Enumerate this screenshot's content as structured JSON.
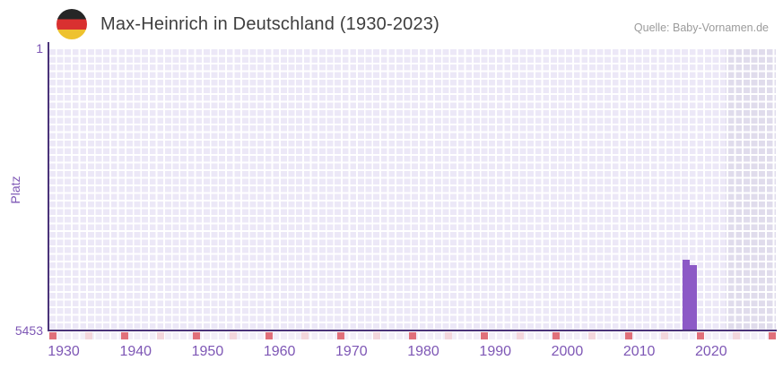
{
  "header": {
    "flag": "germany-flag",
    "title": "Max-Heinrich in Deutschland (1930-2023)",
    "source": "Quelle: Baby-Vornamen.de"
  },
  "chart_data": {
    "type": "bar",
    "title": "Max-Heinrich in Deutschland (1930-2023)",
    "xlabel": "",
    "ylabel": "Platz",
    "y_axis_inverted": true,
    "y_range": [
      1,
      5453
    ],
    "y_ticks": [
      "1",
      "5453"
    ],
    "x_range": [
      1928,
      2029
    ],
    "x_ticks": [
      1930,
      1940,
      1950,
      1960,
      1970,
      1980,
      1990,
      2000,
      2010,
      2020
    ],
    "bars": [
      {
        "year": 2016,
        "rank": 4100
      },
      {
        "year": 2017,
        "rank": 4200
      }
    ],
    "shaded_band_x": [
      2022,
      2029
    ],
    "decade_markers_dark": [
      1928,
      1938,
      1948,
      1958,
      1968,
      1978,
      1988,
      1998,
      2008,
      2018,
      2028
    ],
    "decade_markers_light": [
      1933,
      1943,
      1953,
      1963,
      1973,
      1983,
      1993,
      2003,
      2013,
      2023
    ],
    "grid": true,
    "legend": false,
    "colors": {
      "bar": "#8c59c6",
      "plot_bg": "#ece8f7",
      "band_bg": "#e0dcec",
      "grid_line": "#ffffff",
      "axis_line": "#4a3379",
      "tick_label": "#7e57b5",
      "marker_dark": "#e0707a",
      "marker_light": "#f3d6dc",
      "title_text": "#3e3e3e",
      "source_text": "#9b9b9b"
    }
  }
}
